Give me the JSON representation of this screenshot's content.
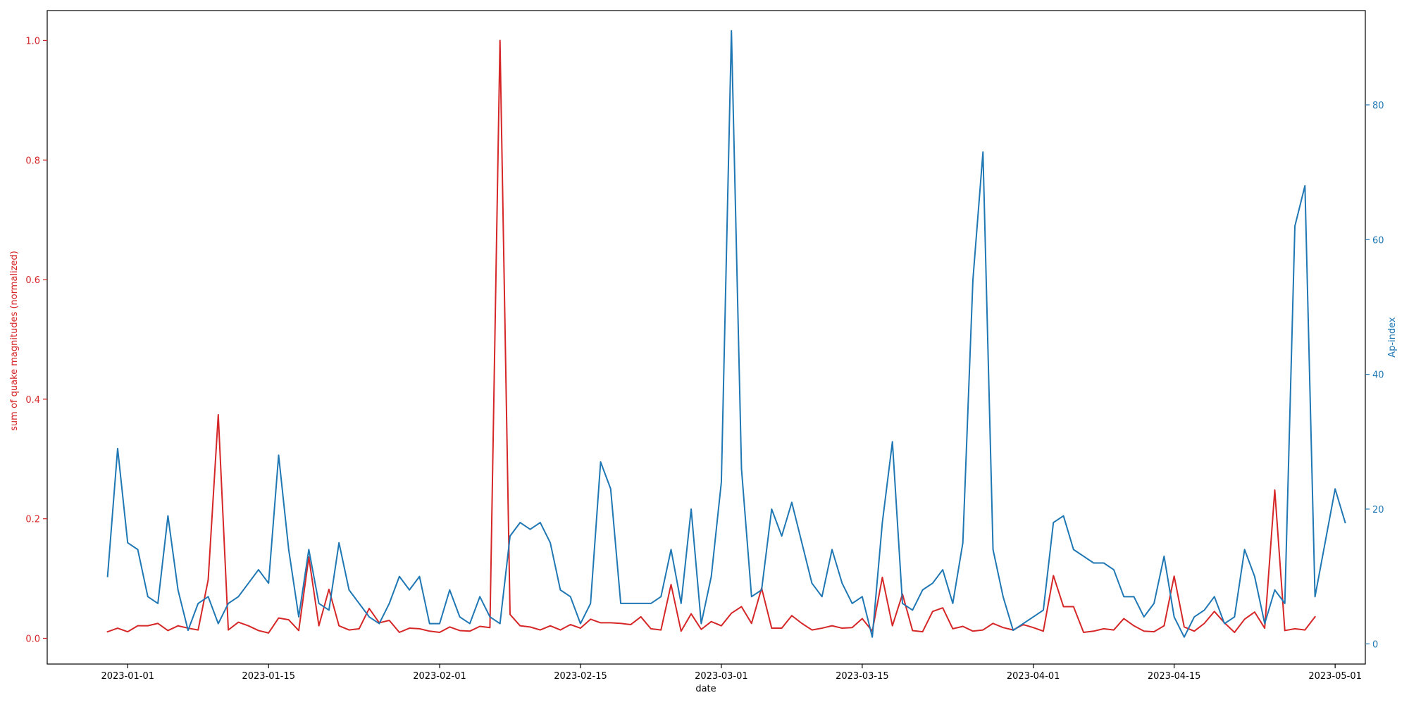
{
  "chart_data": {
    "type": "line",
    "title": "",
    "xlabel": "date",
    "ylabel": "sum of quake magnitudes (normalized)",
    "y2label": "Ap-index",
    "xlim": [
      "2022-12-24",
      "2023-05-04"
    ],
    "ylim": [
      -0.043,
      1.05
    ],
    "y2lim": [
      -3,
      94
    ],
    "grid": false,
    "legend": "none",
    "xticks": [
      "2023-01-01",
      "2023-01-15",
      "2023-02-01",
      "2023-02-15",
      "2023-03-01",
      "2023-03-15",
      "2023-04-01",
      "2023-04-15",
      "2023-05-01"
    ],
    "yticks": [
      "0.0",
      "0.2",
      "0.4",
      "0.6",
      "0.8",
      "1.0"
    ],
    "y2ticks": [
      "0",
      "20",
      "40",
      "60",
      "80"
    ],
    "colors": {
      "quakes": "#d62728",
      "ap": "#1f77b4",
      "axis": "#000000"
    },
    "x_start": "2022-12-30",
    "series": [
      {
        "axis": "left",
        "color": "#d62728",
        "values": [
          0.011,
          0.017,
          0.011,
          0.021,
          0.021,
          0.025,
          0.013,
          0.021,
          0.017,
          0.014,
          0.098,
          0.374,
          0.014,
          0.027,
          0.021,
          0.013,
          0.009,
          0.034,
          0.031,
          0.013,
          0.136,
          0.021,
          0.082,
          0.021,
          0.014,
          0.016,
          0.05,
          0.026,
          0.03,
          0.01,
          0.017,
          0.016,
          0.012,
          0.01,
          0.019,
          0.013,
          0.012,
          0.02,
          0.018,
          1.0,
          0.04,
          0.021,
          0.019,
          0.014,
          0.021,
          0.014,
          0.023,
          0.017,
          0.032,
          0.026,
          0.026,
          0.025,
          0.023,
          0.036,
          0.016,
          0.014,
          0.09,
          0.012,
          0.041,
          0.015,
          0.028,
          0.021,
          0.042,
          0.053,
          0.025,
          0.084,
          0.017,
          0.017,
          0.038,
          0.025,
          0.014,
          0.017,
          0.021,
          0.017,
          0.018,
          0.033,
          0.012,
          0.102,
          0.021,
          0.074,
          0.013,
          0.011,
          0.045,
          0.051,
          0.016,
          0.02,
          0.012,
          0.014,
          0.025,
          0.018,
          0.014,
          0.023,
          0.018,
          0.012,
          0.105,
          0.053,
          0.053,
          0.01,
          0.012,
          0.016,
          0.014,
          0.033,
          0.021,
          0.012,
          0.011,
          0.021,
          0.104,
          0.019,
          0.012,
          0.025,
          0.045,
          0.026,
          0.01,
          0.032,
          0.044,
          0.017,
          0.248,
          0.013,
          0.016,
          0.014,
          0.036
        ]
      },
      {
        "axis": "right",
        "color": "#1f77b4",
        "values": [
          10,
          29,
          15,
          14,
          7,
          6,
          19,
          8,
          2,
          6,
          7,
          3,
          6,
          7,
          9,
          11,
          9,
          28,
          14,
          4,
          14,
          6,
          5,
          15,
          8,
          6,
          4,
          3,
          6,
          10,
          8,
          10,
          3,
          3,
          8,
          4,
          3,
          7,
          4,
          3,
          16,
          18,
          17,
          18,
          15,
          8,
          7,
          3,
          6,
          27,
          23,
          6,
          6,
          6,
          6,
          7,
          14,
          6,
          20,
          3,
          10,
          24,
          91,
          26,
          7,
          8,
          20,
          16,
          21,
          15,
          9,
          7,
          14,
          9,
          6,
          7,
          1,
          18,
          30,
          6,
          5,
          8,
          9,
          11,
          6,
          15,
          54,
          73,
          14,
          7,
          2,
          3,
          4,
          5,
          18,
          19,
          14,
          13,
          12,
          12,
          11,
          7,
          7,
          4,
          6,
          13,
          4,
          1,
          4,
          5,
          7,
          3,
          4,
          14,
          10,
          3,
          8,
          6,
          62,
          68,
          7,
          15,
          23,
          18
        ]
      }
    ]
  }
}
